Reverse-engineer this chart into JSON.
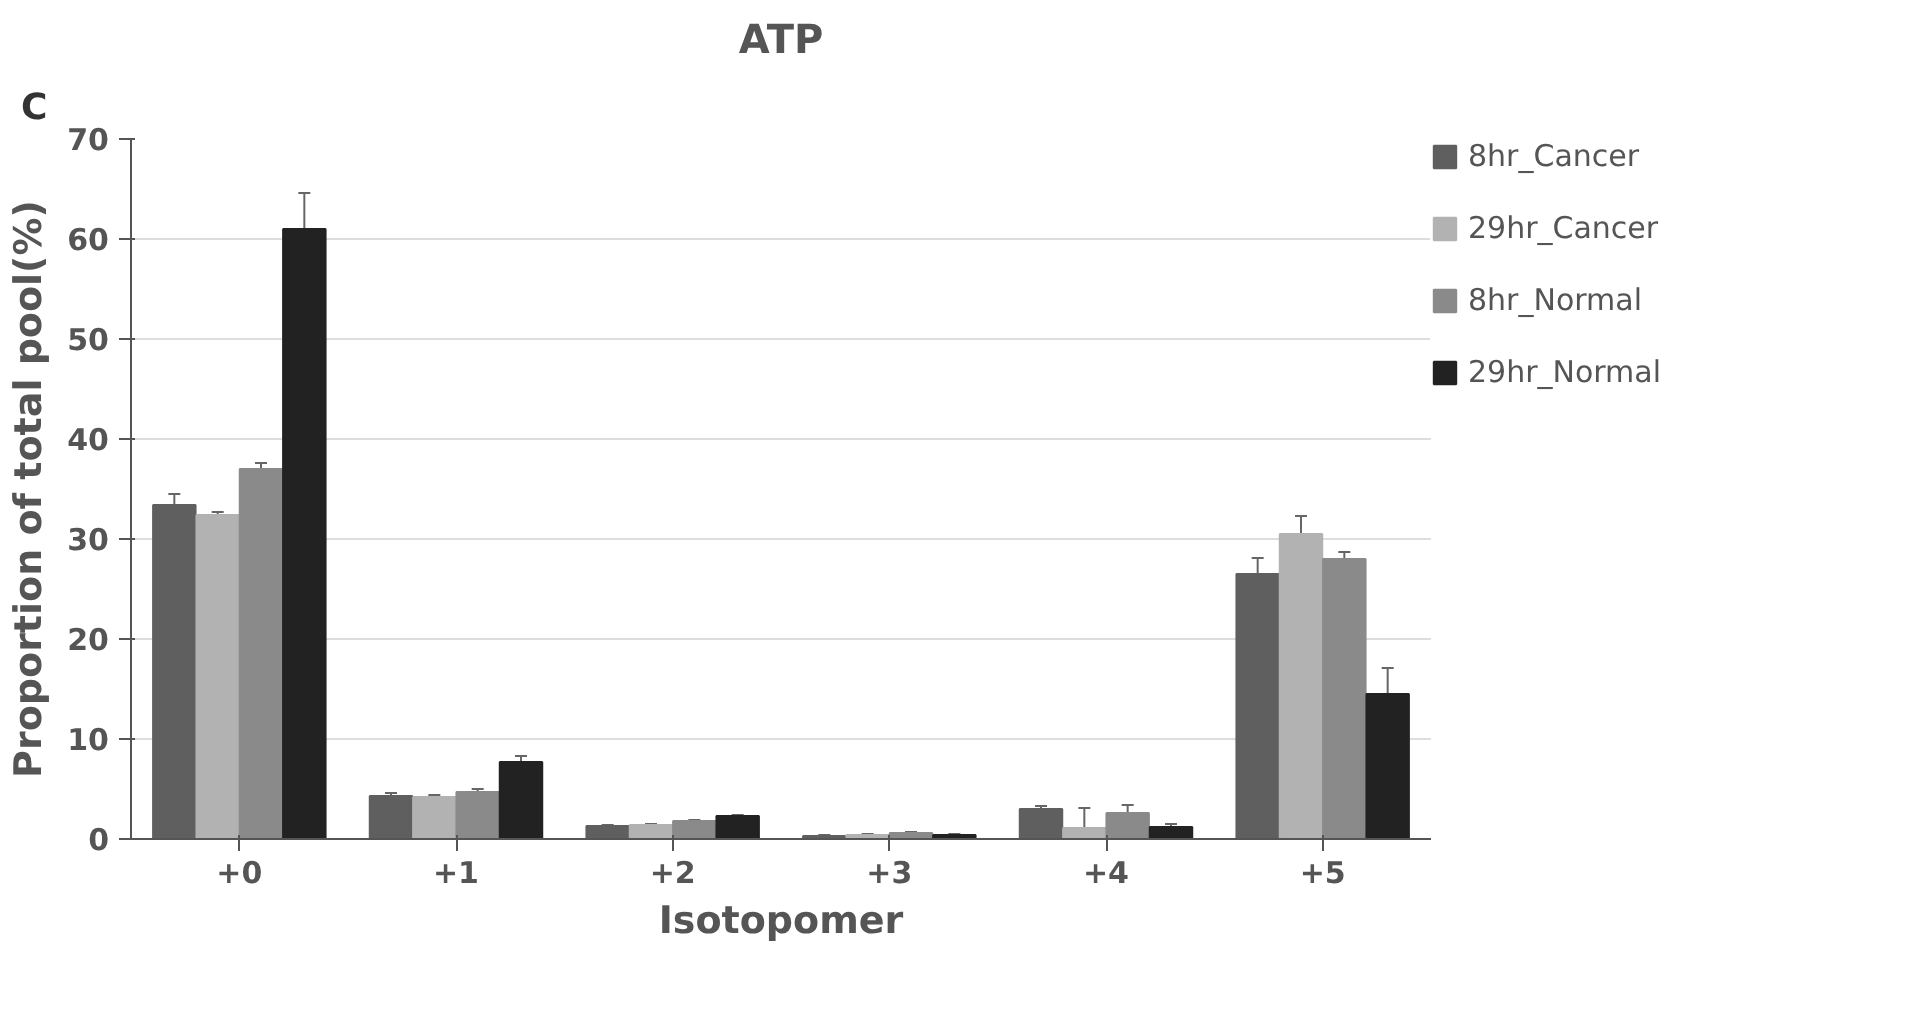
{
  "chart_data": {
    "type": "bar",
    "title": "ATP",
    "xlabel": "Isotopomer",
    "ylabel": "Proportion of total pool(%)",
    "annotations": [
      "C"
    ],
    "categories": [
      "+0",
      "+1",
      "+2",
      "+3",
      "+4",
      "+5"
    ],
    "series": [
      {
        "name": "8hr_Cancer",
        "color": "#5f5f5f",
        "values": [
          33.4,
          4.3,
          1.3,
          0.3,
          3.0,
          26.5
        ],
        "errors": [
          1.1,
          0.3,
          0.1,
          0.1,
          0.3,
          1.6
        ]
      },
      {
        "name": "29hr_Cancer",
        "color": "#b2b2b2",
        "values": [
          32.4,
          4.2,
          1.4,
          0.4,
          1.1,
          30.5
        ],
        "errors": [
          0.3,
          0.2,
          0.1,
          0.1,
          2.0,
          1.8
        ]
      },
      {
        "name": "8hr_Normal",
        "color": "#8a8a8a",
        "values": [
          37.0,
          4.7,
          1.8,
          0.6,
          2.6,
          28.0
        ],
        "errors": [
          0.6,
          0.3,
          0.1,
          0.1,
          0.8,
          0.7
        ]
      },
      {
        "name": "29hr_Normal",
        "color": "#222222",
        "values": [
          61.0,
          7.7,
          2.3,
          0.4,
          1.2,
          14.5
        ],
        "errors": [
          3.6,
          0.6,
          0.1,
          0.1,
          0.3,
          2.6
        ]
      }
    ],
    "ylim": [
      0,
      70
    ],
    "yticks": [
      0,
      10,
      20,
      30,
      40,
      50,
      60,
      70
    ],
    "grid": "y",
    "legend": "right"
  }
}
